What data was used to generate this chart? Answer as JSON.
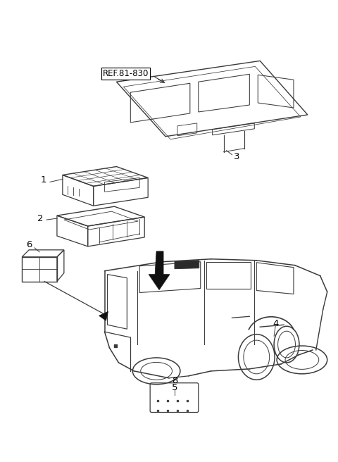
{
  "background_color": "#ffffff",
  "line_color": "#3a3a3a",
  "text_color": "#000000",
  "ref_label": "REF.81-830",
  "figsize": [
    4.8,
    6.56
  ],
  "dpi": 100
}
